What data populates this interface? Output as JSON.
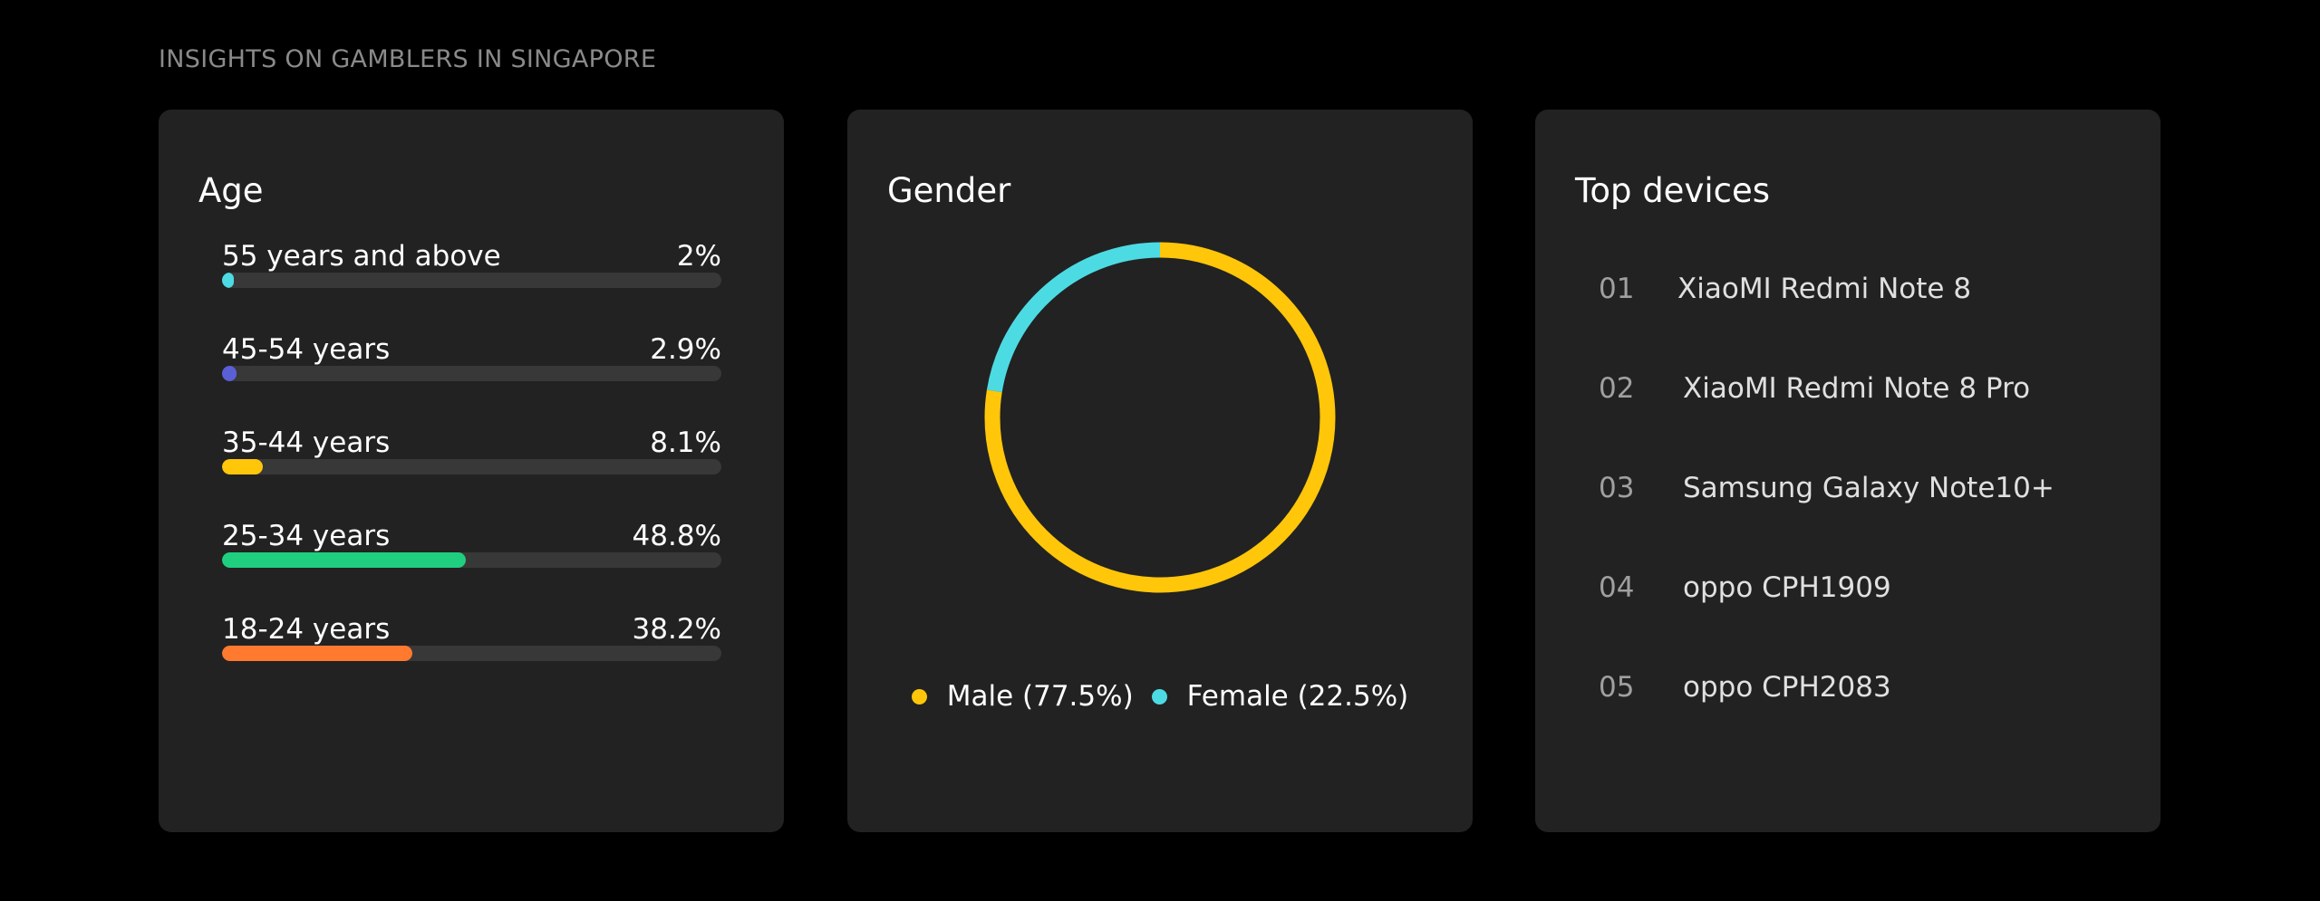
{
  "page": {
    "heading": "INSIGHTS ON GAMBLERS IN SINGAPORE"
  },
  "age": {
    "title": "Age",
    "rows": [
      {
        "label": "55 years and above",
        "value_text": "2%",
        "value": 2,
        "color": "#4ddbe3"
      },
      {
        "label": "45-54 years",
        "value_text": "2.9%",
        "value": 2.9,
        "color": "#5b5fd6"
      },
      {
        "label": "35-44 years",
        "value_text": "8.1%",
        "value": 8.1,
        "color": "#ffc60a"
      },
      {
        "label": "25-34 years",
        "value_text": "48.8%",
        "value": 48.8,
        "color": "#1fcf7f"
      },
      {
        "label": "18-24 years",
        "value_text": "38.2%",
        "value": 38.2,
        "color": "#ff7a2f"
      }
    ]
  },
  "gender": {
    "title": "Gender",
    "legend": [
      {
        "label": "Male (77.5%)",
        "value": 77.5,
        "color": "#ffc60a"
      },
      {
        "label": "Female (22.5%)",
        "value": 22.5,
        "color": "#4ddbe3"
      }
    ]
  },
  "devices": {
    "title": "Top devices",
    "items": [
      {
        "rank": "01",
        "name": "XiaoMI Redmi Note 8"
      },
      {
        "rank": "02",
        "name": "XiaoMI Redmi Note 8 Pro"
      },
      {
        "rank": "03",
        "name": "Samsung Galaxy Note10+"
      },
      {
        "rank": "04",
        "name": "oppo CPH1909"
      },
      {
        "rank": "05",
        "name": "oppo CPH2083"
      }
    ]
  }
}
